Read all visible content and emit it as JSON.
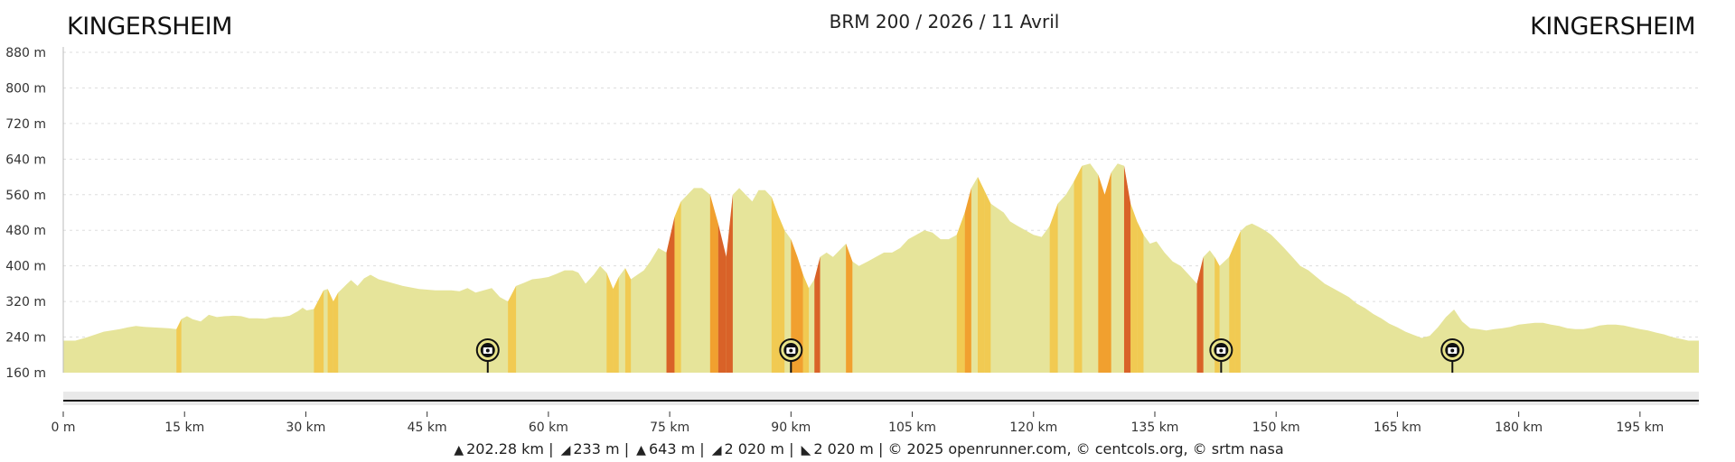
{
  "route": {
    "title": "BRM 200 / 2026 / 11 Avril",
    "start_label": "KINGERSHEIM",
    "end_label": "KINGERSHEIM"
  },
  "stats": {
    "distance": "202.28 km",
    "min_altitude": "233 m",
    "max_altitude": "643 m",
    "elevation_gain": "2 020 m",
    "elevation_loss": "2 020 m",
    "credits": "© 2025 openrunner.com, © centcols.org, © srtm nasa",
    "icons": [
      "distance-icon",
      "min-altitude-icon",
      "max-altitude-icon",
      "elevation-gain-icon",
      "elevation-loss-icon"
    ]
  },
  "chart_data": {
    "type": "area",
    "xlabel": "",
    "ylabel": "",
    "x_unit": "km",
    "y_unit": "m",
    "xlim": [
      0,
      202.28
    ],
    "ylim": [
      160,
      880
    ],
    "x_ticks": [
      0,
      15,
      30,
      45,
      60,
      75,
      90,
      105,
      120,
      135,
      150,
      165,
      180,
      195
    ],
    "x_tick_labels": [
      "0 m",
      "15 km",
      "30 km",
      "45 km",
      "60 km",
      "75 km",
      "90 km",
      "105 km",
      "120 km",
      "135 km",
      "150 km",
      "165 km",
      "180 km",
      "195 km"
    ],
    "y_ticks": [
      160,
      240,
      320,
      400,
      480,
      560,
      640,
      720,
      800,
      880
    ],
    "y_tick_labels": [
      "160 m",
      "240 m",
      "320 m",
      "400 m",
      "480 m",
      "560 m",
      "640 m",
      "720 m",
      "800 m",
      "880 m"
    ],
    "grid": true,
    "colors": {
      "fill": "#e6e49a",
      "gradient_light": "#f2c645",
      "gradient_medium": "#f2941c",
      "gradient_steep": "#d64b14",
      "axis": "#333333",
      "grid": "#dddddd"
    },
    "series": [
      {
        "x": [
          0,
          1.5,
          3,
          5,
          7,
          8,
          9,
          10,
          11,
          12,
          13,
          14,
          14.6,
          15.3,
          16,
          17,
          18,
          19,
          20,
          21,
          22,
          23,
          24,
          25,
          26,
          27,
          28,
          29,
          29.6,
          30.1,
          31,
          32.2,
          32.7,
          33.4,
          34,
          35,
          35.6,
          36.4,
          37.2,
          38,
          39,
          40,
          42,
          44,
          46,
          48,
          49,
          50,
          51,
          52,
          53,
          54,
          55,
          56,
          57,
          58,
          59,
          60,
          61,
          62,
          63,
          63.7,
          64.6,
          65.6,
          66.4,
          67.2,
          68,
          68.7,
          69.5,
          70.2,
          71,
          71.8,
          72.6,
          73.6,
          74.6,
          75.6,
          76.4,
          77.2,
          78,
          79,
          80,
          81,
          82,
          82.8,
          83.6,
          84.4,
          85.2,
          86,
          86.8,
          87.6,
          88.4,
          89.2,
          90,
          90.8,
          91.5,
          92.2,
          92.9,
          93.6,
          94.4,
          95.2,
          96,
          96.8,
          97.6,
          98.4,
          99.5,
          100.5,
          101.5,
          102.5,
          103.5,
          104.5,
          105.5,
          106.5,
          107.5,
          108.5,
          109.5,
          110.5,
          111.5,
          112.3,
          113.1,
          113.9,
          114.7,
          115.5,
          116.3,
          117.1,
          118,
          119,
          120,
          121,
          122,
          123,
          124,
          125,
          126,
          127,
          128,
          128.8,
          129.6,
          130.4,
          131.2,
          132,
          132.8,
          133.6,
          134.4,
          135.2,
          136.2,
          137.2,
          138.2,
          139.2,
          140.2,
          141,
          141.8,
          142.4,
          143,
          143.6,
          144.2,
          144.9,
          145.6,
          146.3,
          147,
          147.8,
          148.6,
          149.4,
          150.2,
          151,
          152,
          153,
          154,
          155,
          156,
          157,
          158,
          159,
          160,
          161,
          162,
          163,
          164,
          165,
          166,
          167,
          168,
          169,
          170,
          171,
          172,
          173,
          174,
          175,
          176,
          177,
          178,
          179,
          180,
          181,
          182,
          183,
          184,
          185,
          186,
          187,
          188,
          189,
          190,
          191,
          192,
          193,
          194,
          195,
          196,
          197,
          198,
          199,
          200,
          201,
          202.28
        ],
        "y": [
          232,
          232,
          240,
          252,
          258,
          262,
          265,
          263,
          262,
          261,
          260,
          258,
          280,
          287,
          280,
          275,
          290,
          285,
          287,
          288,
          287,
          282,
          282,
          281,
          285,
          285,
          288,
          298,
          306,
          300,
          303,
          345,
          348,
          320,
          340,
          358,
          368,
          355,
          372,
          380,
          370,
          365,
          355,
          348,
          345,
          345,
          343,
          350,
          340,
          345,
          350,
          330,
          320,
          355,
          362,
          370,
          372,
          375,
          382,
          390,
          390,
          385,
          360,
          380,
          400,
          385,
          348,
          375,
          395,
          370,
          380,
          390,
          410,
          440,
          430,
          510,
          545,
          560,
          575,
          575,
          560,
          495,
          420,
          560,
          575,
          560,
          545,
          570,
          570,
          555,
          515,
          480,
          460,
          420,
          380,
          350,
          370,
          420,
          430,
          420,
          435,
          450,
          410,
          400,
          410,
          420,
          430,
          430,
          440,
          460,
          470,
          480,
          475,
          460,
          460,
          470,
          520,
          575,
          600,
          570,
          540,
          530,
          520,
          500,
          490,
          480,
          470,
          465,
          490,
          540,
          560,
          590,
          625,
          630,
          605,
          560,
          610,
          630,
          625,
          540,
          500,
          470,
          450,
          455,
          430,
          410,
          400,
          380,
          360,
          420,
          435,
          420,
          400,
          410,
          420,
          450,
          478,
          490,
          495,
          488,
          480,
          470,
          455,
          440,
          420,
          400,
          390,
          375,
          360,
          350,
          340,
          330,
          315,
          305,
          292,
          282,
          270,
          262,
          252,
          245,
          238,
          243,
          262,
          285,
          302,
          275,
          260,
          258,
          255,
          258,
          260,
          263,
          268,
          270,
          272,
          272,
          268,
          265,
          260,
          258,
          258,
          261,
          266,
          268,
          268,
          266,
          262,
          258,
          255,
          250,
          246,
          240,
          236,
          232,
          232
        ]
      }
    ],
    "markers": [
      {
        "name": "photo-marker",
        "x": 52.5
      },
      {
        "name": "photo-marker",
        "x": 90.0
      },
      {
        "name": "photo-marker",
        "x": 143.2
      },
      {
        "name": "photo-marker",
        "x": 171.8
      }
    ]
  }
}
